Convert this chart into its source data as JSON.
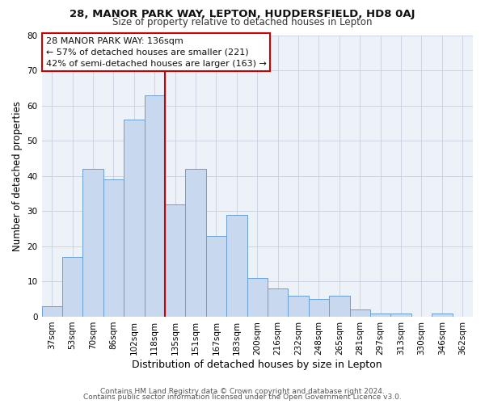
{
  "title": "28, MANOR PARK WAY, LEPTON, HUDDERSFIELD, HD8 0AJ",
  "subtitle": "Size of property relative to detached houses in Lepton",
  "xlabel": "Distribution of detached houses by size in Lepton",
  "ylabel": "Number of detached properties",
  "categories": [
    "37sqm",
    "53sqm",
    "70sqm",
    "86sqm",
    "102sqm",
    "118sqm",
    "135sqm",
    "151sqm",
    "167sqm",
    "183sqm",
    "200sqm",
    "216sqm",
    "232sqm",
    "248sqm",
    "265sqm",
    "281sqm",
    "297sqm",
    "313sqm",
    "330sqm",
    "346sqm",
    "362sqm"
  ],
  "values": [
    3,
    17,
    42,
    39,
    56,
    63,
    32,
    42,
    23,
    29,
    11,
    8,
    6,
    5,
    6,
    2,
    1,
    1,
    0,
    1,
    0
  ],
  "bar_color": "#c8d8ee",
  "bar_edge_color": "#6a9fd4",
  "vline_index": 6,
  "annotation_title": "28 MANOR PARK WAY: 136sqm",
  "annotation_line1": "← 57% of detached houses are smaller (221)",
  "annotation_line2": "42% of semi-detached houses are larger (163) →",
  "vline_color": "#cc0000",
  "footer1": "Contains HM Land Registry data © Crown copyright and database right 2024.",
  "footer2": "Contains public sector information licensed under the Open Government Licence v3.0.",
  "ylim": [
    0,
    80
  ],
  "yticks": [
    0,
    10,
    20,
    30,
    40,
    50,
    60,
    70,
    80
  ],
  "grid_color": "#c8d0de",
  "bg_color": "#edf1f8",
  "title_fontsize": 9.5,
  "subtitle_fontsize": 8.5,
  "xlabel_fontsize": 9,
  "ylabel_fontsize": 8.5,
  "tick_fontsize": 7.5,
  "footer_fontsize": 6.5,
  "annotation_fontsize": 8
}
